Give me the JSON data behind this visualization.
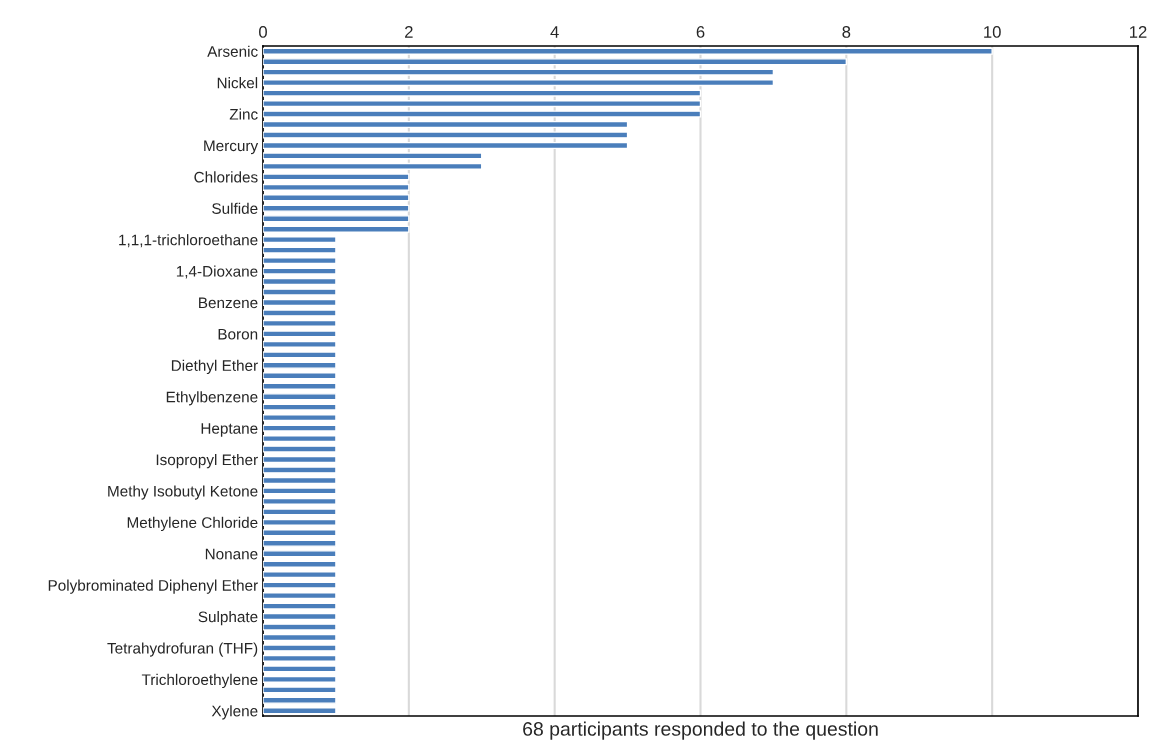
{
  "chart_data": {
    "type": "bar",
    "orientation": "horizontal",
    "categories": [
      "Arsenic",
      null,
      null,
      "Nickel",
      null,
      null,
      "Zinc",
      null,
      null,
      "Mercury",
      null,
      null,
      "Chlorides",
      null,
      null,
      "Sulfide",
      null,
      null,
      "1,1,1-trichloroethane",
      null,
      null,
      "1,4-Dioxane",
      null,
      null,
      "Benzene",
      null,
      null,
      "Boron",
      null,
      null,
      "Diethyl Ether",
      null,
      null,
      "Ethylbenzene",
      null,
      null,
      "Heptane",
      null,
      null,
      "Isopropyl Ether",
      null,
      null,
      "Methy Isobutyl Ketone",
      null,
      null,
      "Methylene Chloride",
      null,
      null,
      "Nonane",
      null,
      null,
      "Polybrominated Diphenyl Ether",
      null,
      null,
      "Sulphate",
      null,
      null,
      "Tetrahydrofuran (THF)",
      null,
      null,
      "Trichloroethylene",
      null,
      null,
      "Xylene"
    ],
    "values": [
      10,
      8,
      7,
      7,
      6,
      6,
      6,
      5,
      5,
      5,
      3,
      3,
      2,
      2,
      2,
      2,
      2,
      2,
      1,
      1,
      1,
      1,
      1,
      1,
      1,
      1,
      1,
      1,
      1,
      1,
      1,
      1,
      1,
      1,
      1,
      1,
      1,
      1,
      1,
      1,
      1,
      1,
      1,
      1,
      1,
      1,
      1,
      1,
      1,
      1,
      1,
      1,
      1,
      1,
      1,
      1,
      1,
      1,
      1,
      1,
      1,
      1,
      1,
      1
    ],
    "color": "#4a7ebb",
    "xlabel": "68 participants responded to the question",
    "xlim": [
      0,
      12
    ],
    "xticks": [
      0,
      2,
      4,
      6,
      8,
      10,
      12
    ],
    "grid": "x"
  }
}
